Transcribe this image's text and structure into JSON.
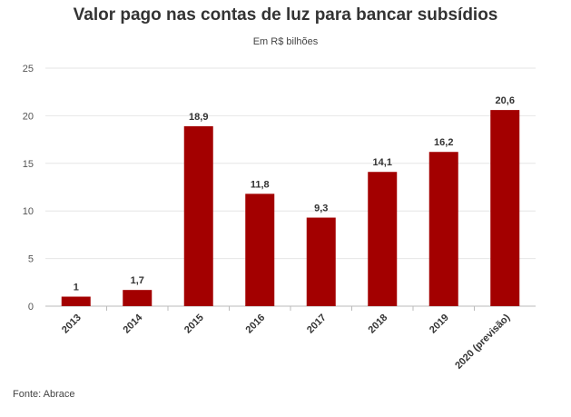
{
  "chart_data": {
    "type": "bar",
    "title": "Valor pago nas contas de luz para bancar subsídios",
    "subtitle": "Em R$ bilhões",
    "categories": [
      "2013",
      "2014",
      "2015",
      "2016",
      "2017",
      "2018",
      "2019",
      "2020 (previsão)"
    ],
    "values": [
      1,
      1.7,
      18.9,
      11.8,
      9.3,
      14.1,
      16.2,
      20.6
    ],
    "value_labels": [
      "1",
      "1,7",
      "18,9",
      "11,8",
      "9,3",
      "14,1",
      "16,2",
      "20,6"
    ],
    "ylim": [
      0,
      25
    ],
    "yticks": [
      0,
      5,
      10,
      15,
      20,
      25
    ],
    "grid": true,
    "bar_color": "#a30000"
  },
  "source": "Fonte: Abrace"
}
